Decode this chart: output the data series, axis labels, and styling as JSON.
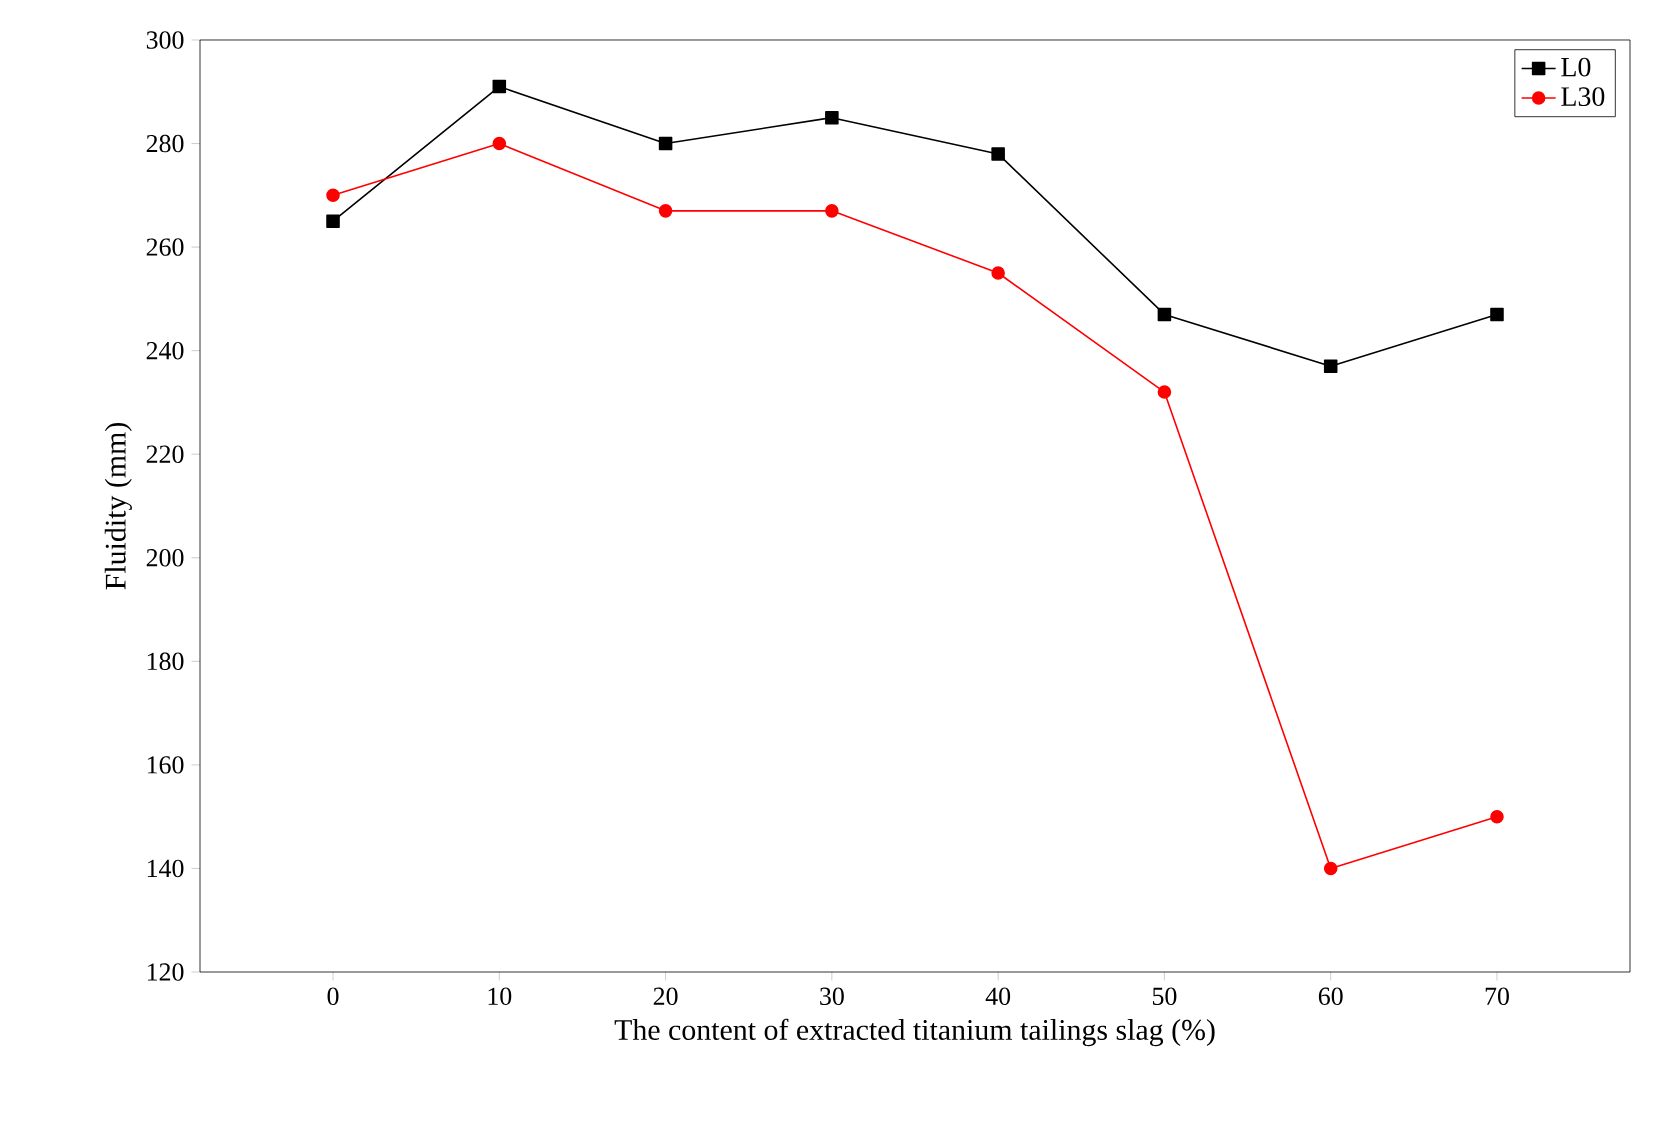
{
  "chart_data": {
    "type": "line",
    "xlabel": "The content of extracted titanium tailings slag (%)",
    "ylabel": "Fluidity (mm)",
    "x": [
      0,
      10,
      20,
      30,
      40,
      50,
      60,
      70
    ],
    "series": [
      {
        "name": "L0",
        "color": "#000000",
        "marker": "square",
        "values": [
          265,
          291,
          280,
          285,
          278,
          247,
          237,
          247
        ]
      },
      {
        "name": "L30",
        "color": "#ff0000",
        "marker": "circle",
        "values": [
          270,
          280,
          267,
          267,
          255,
          232,
          140,
          150
        ]
      }
    ],
    "xlim": [
      -8,
      78
    ],
    "ylim": [
      120,
      300
    ],
    "xticks": [
      0,
      10,
      20,
      30,
      40,
      50,
      60,
      70
    ],
    "yticks": [
      120,
      140,
      160,
      180,
      200,
      220,
      240,
      260,
      280,
      300
    ],
    "legend": "top right",
    "grid": false,
    "line_style": "solid"
  }
}
